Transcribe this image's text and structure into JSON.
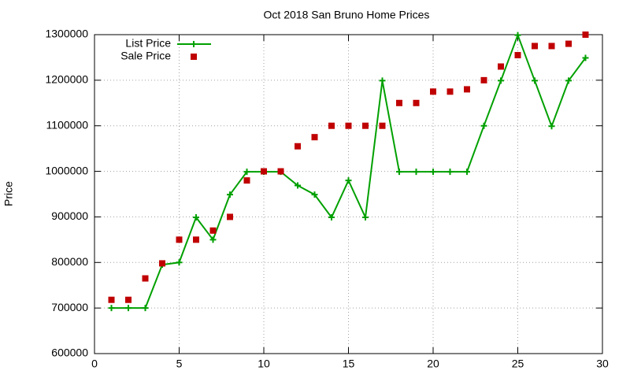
{
  "chart_data": {
    "type": "line",
    "title": "Oct 2018 San Bruno Home Prices",
    "y_label": "Price",
    "x": [
      1,
      2,
      3,
      4,
      5,
      6,
      7,
      8,
      9,
      10,
      11,
      12,
      13,
      14,
      15,
      16,
      17,
      18,
      19,
      20,
      21,
      22,
      23,
      24,
      25,
      26,
      27,
      28,
      29
    ],
    "series": [
      {
        "name": "List Price",
        "color": "#00a000",
        "style": "linespoints",
        "values": [
          700000,
          700000,
          700000,
          795000,
          800000,
          899000,
          850000,
          949000,
          999000,
          999000,
          999000,
          969000,
          949000,
          899000,
          980000,
          899000,
          1199000,
          999000,
          999000,
          999000,
          999000,
          999000,
          1100000,
          1199000,
          1299000,
          1199000,
          1099000,
          1199000,
          1249000
        ]
      },
      {
        "name": "Sale Price",
        "color": "#c00000",
        "style": "points",
        "values": [
          718000,
          718000,
          765000,
          798000,
          850000,
          850000,
          870000,
          900000,
          980000,
          1000000,
          1000000,
          1055000,
          1075000,
          1100000,
          1100000,
          1100000,
          1100000,
          1150000,
          1150000,
          1175000,
          1175000,
          1180000,
          1200000,
          1230000,
          1255000,
          1275000,
          1275000,
          1280000,
          1300000
        ]
      }
    ],
    "xlim": [
      0,
      30
    ],
    "xticks": [
      0,
      5,
      10,
      15,
      20,
      25,
      30
    ],
    "ylim": [
      600000,
      1300000
    ],
    "yticks": [
      600000,
      700000,
      800000,
      900000,
      1000000,
      1100000,
      1200000,
      1300000
    ],
    "grid": true,
    "legend": "top-left"
  }
}
